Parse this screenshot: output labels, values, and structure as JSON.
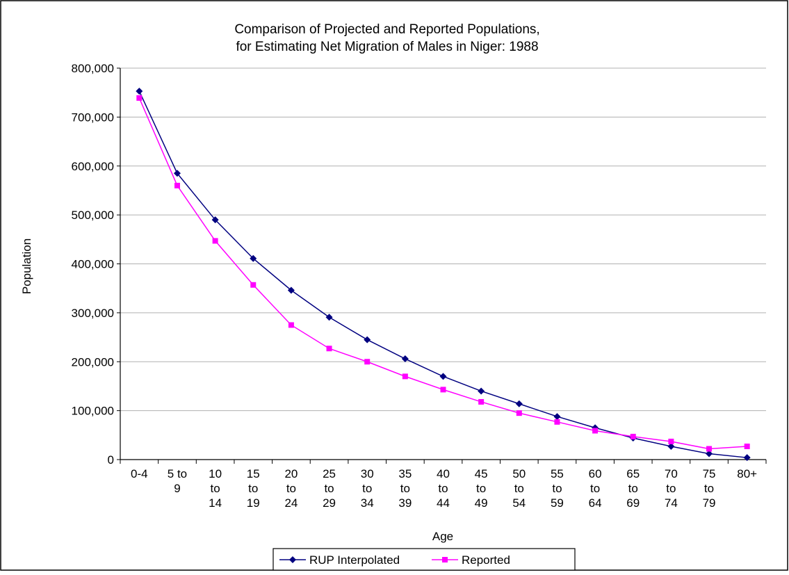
{
  "chart_data": {
    "type": "line",
    "title": "Comparison of Projected and Reported Populations,",
    "subtitle": "for Estimating Net Migration of Males in Niger:  1988",
    "xlabel": "Age",
    "ylabel": "Population",
    "ylim": [
      0,
      800000
    ],
    "y_ticks": [
      "0",
      "100,000",
      "200,000",
      "300,000",
      "400,000",
      "500,000",
      "600,000",
      "700,000",
      "800,000"
    ],
    "categories": [
      [
        "0-4"
      ],
      [
        "5 to",
        "9"
      ],
      [
        "10",
        "to",
        "14"
      ],
      [
        "15",
        "to",
        "19"
      ],
      [
        "20",
        "to",
        "24"
      ],
      [
        "25",
        "to",
        "29"
      ],
      [
        "30",
        "to",
        "34"
      ],
      [
        "35",
        "to",
        "39"
      ],
      [
        "40",
        "to",
        "44"
      ],
      [
        "45",
        "to",
        "49"
      ],
      [
        "50",
        "to",
        "54"
      ],
      [
        "55",
        "to",
        "59"
      ],
      [
        "60",
        "to",
        "64"
      ],
      [
        "65",
        "to",
        "69"
      ],
      [
        "70",
        "to",
        "74"
      ],
      [
        "75",
        "to",
        "79"
      ],
      [
        "80+"
      ]
    ],
    "grid": "horizontal",
    "legend_position": "bottom",
    "series": [
      {
        "name": "RUP Interpolated",
        "color": "#000080",
        "marker": "diamond",
        "values": [
          753000,
          585000,
          490000,
          411000,
          346000,
          291000,
          245000,
          206000,
          170000,
          140000,
          114000,
          88000,
          65000,
          44000,
          27000,
          12000,
          4000
        ]
      },
      {
        "name": "Reported",
        "color": "#ff00ff",
        "marker": "square",
        "values": [
          739000,
          560000,
          447000,
          357000,
          275000,
          227000,
          200000,
          170000,
          143000,
          118000,
          95000,
          77000,
          59000,
          47000,
          37000,
          22000,
          27000
        ]
      }
    ]
  }
}
